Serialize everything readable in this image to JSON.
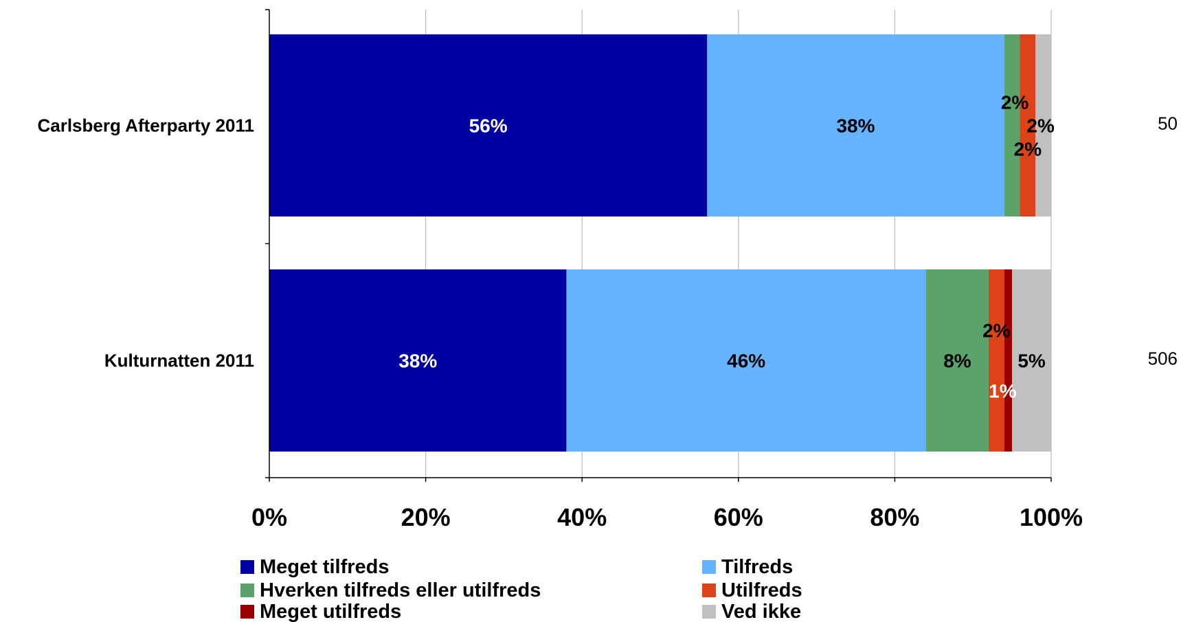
{
  "chart_data": {
    "type": "bar",
    "orientation": "horizontal",
    "stacked": true,
    "categories": [
      "Carlsberg Afterparty 2011",
      "Kulturnatten 2011"
    ],
    "n_labels": [
      "50",
      "506"
    ],
    "xlim": [
      0,
      100
    ],
    "x_ticks": [
      "0%",
      "20%",
      "40%",
      "60%",
      "80%",
      "100%"
    ],
    "grid": "vertical",
    "legend_position": "bottom",
    "series": [
      {
        "name": "Meget tilfreds",
        "color": "#0000A0",
        "values": [
          56,
          38
        ],
        "labels": [
          "56%",
          "38%"
        ],
        "label_color": "#ffffff"
      },
      {
        "name": "Tilfreds",
        "color": "#66B3FF",
        "values": [
          38,
          46
        ],
        "labels": [
          "38%",
          "46%"
        ],
        "label_color": "#000000"
      },
      {
        "name": "Hverken tilfreds eller utilfreds",
        "color": "#5BA36B",
        "values": [
          2,
          8
        ],
        "labels": [
          "2%",
          "8%"
        ],
        "label_color": "#000000"
      },
      {
        "name": "Utilfreds",
        "color": "#DC4418",
        "values": [
          2,
          2
        ],
        "labels": [
          "2%",
          "2%"
        ],
        "label_color": "#000000"
      },
      {
        "name": "Meget utilfreds",
        "color": "#990000",
        "values": [
          0,
          1
        ],
        "labels": [
          "",
          "1%"
        ],
        "label_color": "#ffffff"
      },
      {
        "name": "Ved ikke",
        "color": "#C0C0C0",
        "values": [
          2,
          5
        ],
        "labels": [
          "2%",
          "5%"
        ],
        "label_color": "#000000"
      }
    ]
  }
}
